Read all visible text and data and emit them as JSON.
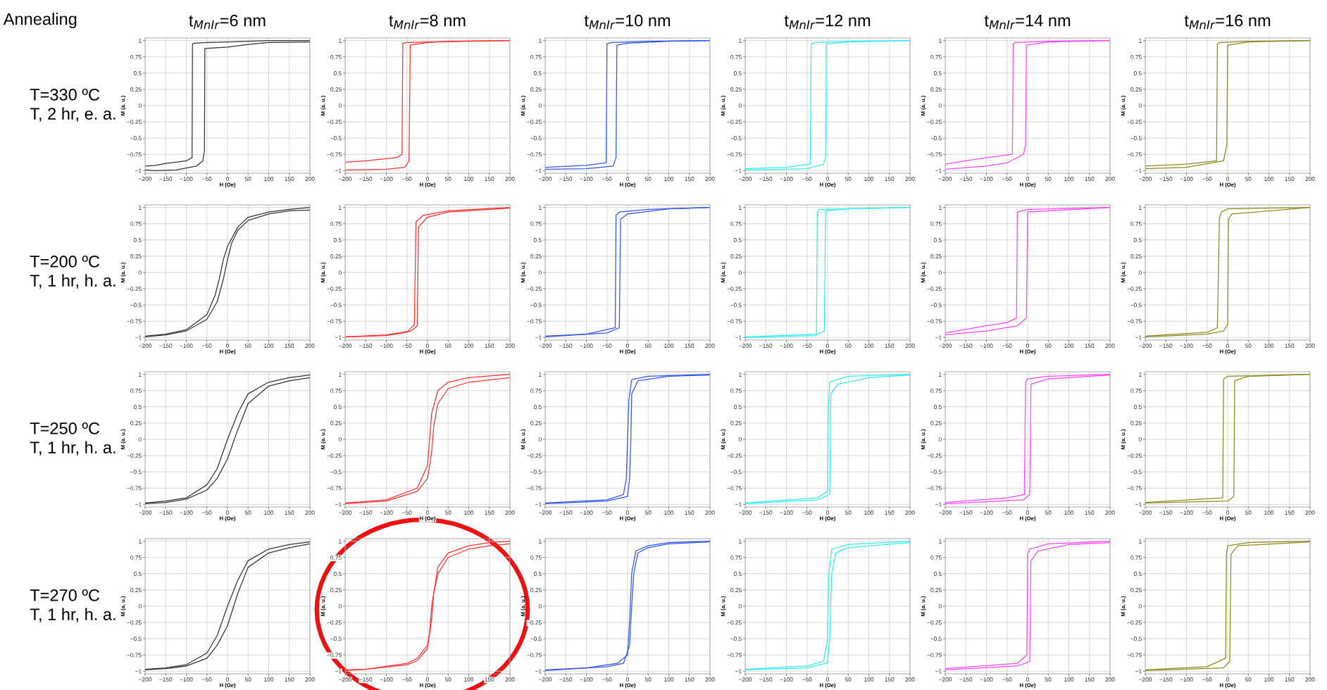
{
  "chart_data": [
    {
      "type": "line",
      "title": "t$_{MnIr}$=6 nm",
      "xlabel": "H (Oe)",
      "ylabel": "M (a. u.)",
      "xlim": [
        -200,
        200
      ],
      "ylim": [
        -1.04,
        1.04
      ],
      "xticks": [
        -200,
        -150,
        -100,
        -50,
        0,
        50,
        100,
        150,
        200
      ],
      "yticks": [
        -1,
        -0.75,
        -0.5,
        -0.25,
        0,
        0.25,
        0.5,
        0.75,
        1
      ],
      "grid": true,
      "annotations": [
        "Annealing",
        "T=330 ºC\nT, 2 hr, e. a."
      ],
      "series": [
        {
          "color": "#333333",
          "x": [
            200,
            100,
            0,
            -50,
            -80,
            -85,
            -86,
            -100,
            -150,
            -175,
            -200
          ],
          "values": [
            1,
            1,
            0.98,
            0.97,
            0.96,
            0.95,
            -0.8,
            -0.85,
            -0.89,
            -0.92,
            -0.93
          ]
        },
        {
          "color": "#333333",
          "x": [
            -200,
            -175,
            -125,
            -75,
            -60,
            -56,
            -55,
            0,
            50,
            100,
            200
          ],
          "values": [
            -0.99,
            -1,
            -0.99,
            -0.93,
            -0.85,
            -0.7,
            0.88,
            0.9,
            0.94,
            0.97,
            0.98
          ]
        }
      ]
    },
    {
      "type": "line",
      "title": "t$_{MnIr}$=8 nm",
      "xlabel": "H (Oe)",
      "ylabel": "M (a. u.)",
      "xlim": [
        -200,
        200
      ],
      "ylim": [
        -1.04,
        1.04
      ],
      "xticks": [
        -200,
        -150,
        -100,
        -50,
        0,
        50,
        100,
        150,
        200
      ],
      "yticks": [
        -1,
        -0.75,
        -0.5,
        -0.25,
        0,
        0.25,
        0.5,
        0.75,
        1
      ],
      "grid": true,
      "series": [
        {
          "color": "#ff3030",
          "x": [
            200,
            0,
            -50,
            -60,
            -62,
            -75,
            -150,
            -200
          ],
          "values": [
            1,
            0.98,
            0.97,
            0.96,
            -0.75,
            -0.8,
            -0.85,
            -0.87
          ]
        },
        {
          "color": "#ff3030",
          "x": [
            -200,
            -100,
            -55,
            -45,
            -42,
            0,
            50,
            200
          ],
          "values": [
            -0.99,
            -0.98,
            -0.95,
            -0.85,
            0.93,
            0.97,
            0.99,
            1
          ]
        }
      ]
    },
    {
      "type": "line",
      "title": "t$_{MnIr}$=10 nm",
      "xlabel": "H (Oe)",
      "ylabel": "M (a. u.)",
      "xlim": [
        -200,
        200
      ],
      "ylim": [
        -1.04,
        1.04
      ],
      "xticks": [
        -200,
        -150,
        -100,
        -50,
        0,
        50,
        100,
        150,
        200
      ],
      "yticks": [
        -1,
        -0.75,
        -0.5,
        -0.25,
        0,
        0.25,
        0.5,
        0.75,
        1
      ],
      "grid": true,
      "series": [
        {
          "color": "#3355ee",
          "x": [
            200,
            50,
            -40,
            -50,
            -52,
            -100,
            -200
          ],
          "values": [
            1,
            0.99,
            0.97,
            0.95,
            -0.88,
            -0.92,
            -0.95
          ]
        },
        {
          "color": "#3355ee",
          "x": [
            -200,
            -100,
            -35,
            -28,
            -26,
            0,
            100,
            200
          ],
          "values": [
            -0.98,
            -0.97,
            -0.93,
            -0.8,
            0.93,
            0.96,
            0.99,
            1
          ]
        }
      ]
    },
    {
      "type": "line",
      "title": "t$_{MnIr}$=12 nm",
      "xlabel": "H (Oe)",
      "ylabel": "M (a. u.)",
      "xlim": [
        -200,
        200
      ],
      "ylim": [
        -1.04,
        1.04
      ],
      "xticks": [
        -200,
        -150,
        -100,
        -50,
        0,
        50,
        100,
        150,
        200
      ],
      "yticks": [
        -1,
        -0.75,
        -0.5,
        -0.25,
        0,
        0.25,
        0.5,
        0.75,
        1
      ],
      "grid": true,
      "series": [
        {
          "color": "#33eeee",
          "x": [
            200,
            50,
            -30,
            -40,
            -42,
            -100,
            -200
          ],
          "values": [
            1,
            0.99,
            0.97,
            0.95,
            -0.9,
            -0.95,
            -0.97
          ]
        },
        {
          "color": "#33eeee",
          "x": [
            -200,
            -50,
            -10,
            -5,
            -3,
            50,
            200
          ],
          "values": [
            -0.99,
            -0.97,
            -0.9,
            -0.8,
            0.95,
            0.98,
            1
          ]
        }
      ]
    },
    {
      "type": "line",
      "title": "t$_{MnIr}$=14 nm",
      "xlabel": "H (Oe)",
      "ylabel": "M (a. u.)",
      "xlim": [
        -200,
        200
      ],
      "ylim": [
        -1.04,
        1.04
      ],
      "xticks": [
        -200,
        -150,
        -100,
        -50,
        0,
        50,
        100,
        150,
        200
      ],
      "yticks": [
        -1,
        -0.75,
        -0.5,
        -0.25,
        0,
        0.25,
        0.5,
        0.75,
        1
      ],
      "grid": true,
      "series": [
        {
          "color": "#ff44ff",
          "x": [
            200,
            50,
            -30,
            -35,
            -37,
            -100,
            -150,
            -200
          ],
          "values": [
            1,
            0.99,
            0.97,
            0.95,
            -0.75,
            -0.8,
            -0.85,
            -0.9
          ]
        },
        {
          "color": "#ff44ff",
          "x": [
            -200,
            -100,
            -50,
            -10,
            -5,
            -3,
            50,
            200
          ],
          "values": [
            -0.98,
            -0.93,
            -0.88,
            -0.75,
            -0.6,
            0.93,
            0.98,
            1
          ]
        }
      ]
    },
    {
      "type": "line",
      "title": "t$_{MnIr}$=16 nm",
      "xlabel": "H (Oe)",
      "ylabel": "M (a. u.)",
      "xlim": [
        -200,
        200
      ],
      "ylim": [
        -1.04,
        1.04
      ],
      "xticks": [
        -200,
        -150,
        -100,
        -50,
        0,
        50,
        100,
        150,
        200
      ],
      "yticks": [
        -1,
        -0.75,
        -0.5,
        -0.25,
        0,
        0.25,
        0.5,
        0.75,
        1
      ],
      "grid": true,
      "series": [
        {
          "color": "#8b8b1e",
          "x": [
            200,
            50,
            -20,
            -25,
            -27,
            -100,
            -200
          ],
          "values": [
            1,
            0.99,
            0.97,
            0.95,
            -0.85,
            -0.9,
            -0.93
          ]
        },
        {
          "color": "#8b8b1e",
          "x": [
            -200,
            -100,
            -10,
            -2,
            0,
            50,
            200
          ],
          "values": [
            -0.97,
            -0.95,
            -0.85,
            -0.6,
            0.93,
            0.98,
            1
          ]
        }
      ]
    },
    {
      "type": "line",
      "xlabel": "H (Oe)",
      "ylabel": "M (a. u.)",
      "xlim": [
        -200,
        200
      ],
      "ylim": [
        -1.04,
        1.04
      ],
      "xticks": [
        -200,
        -150,
        -100,
        -50,
        0,
        50,
        100,
        150,
        200
      ],
      "yticks": [
        -1,
        -0.75,
        -0.5,
        -0.25,
        0,
        0.25,
        0.5,
        0.75,
        1
      ],
      "grid": true,
      "annotations": [
        "T=200 ºC\nT, 1 hr, h. a."
      ],
      "series": [
        {
          "color": "#333333",
          "x": [
            200,
            150,
            100,
            50,
            25,
            0,
            -10,
            -20,
            -30,
            -50,
            -100,
            -150,
            -200
          ],
          "values": [
            1,
            0.97,
            0.93,
            0.85,
            0.7,
            0.4,
            0.2,
            -0.1,
            -0.35,
            -0.65,
            -0.88,
            -0.95,
            -0.98
          ]
        },
        {
          "color": "#333333",
          "x": [
            -200,
            -150,
            -100,
            -50,
            -25,
            -10,
            0,
            10,
            25,
            50,
            100,
            150,
            200
          ],
          "values": [
            -0.99,
            -0.96,
            -0.9,
            -0.72,
            -0.45,
            -0.1,
            0.2,
            0.45,
            0.65,
            0.8,
            0.9,
            0.95,
            0.96
          ]
        }
      ]
    },
    {
      "type": "line",
      "xlabel": "H (Oe)",
      "ylabel": "M (a. u.)",
      "xlim": [
        -200,
        200
      ],
      "ylim": [
        -1.04,
        1.04
      ],
      "xticks": [
        -200,
        -150,
        -100,
        -50,
        0,
        50,
        100,
        150,
        200
      ],
      "yticks": [
        -1,
        -0.75,
        -0.5,
        -0.25,
        0,
        0.25,
        0.5,
        0.75,
        1
      ],
      "grid": true,
      "series": [
        {
          "color": "#ff3030",
          "x": [
            200,
            50,
            -10,
            -28,
            -32,
            -50,
            -100,
            -200
          ],
          "values": [
            1,
            0.95,
            0.88,
            0.78,
            -0.8,
            -0.92,
            -0.97,
            -0.99
          ]
        },
        {
          "color": "#ff3030",
          "x": [
            -200,
            -100,
            -40,
            -25,
            -22,
            0,
            50,
            200
          ],
          "values": [
            -0.99,
            -0.96,
            -0.9,
            -0.82,
            0.7,
            0.85,
            0.93,
            0.99
          ]
        }
      ]
    },
    {
      "type": "line",
      "xlabel": "H (Oe)",
      "ylabel": "M (a. u.)",
      "xlim": [
        -200,
        200
      ],
      "ylim": [
        -1.04,
        1.04
      ],
      "xticks": [
        -200,
        -150,
        -100,
        -50,
        0,
        50,
        100,
        150,
        200
      ],
      "yticks": [
        -1,
        -0.75,
        -0.5,
        -0.25,
        0,
        0.25,
        0.5,
        0.75,
        1
      ],
      "grid": true,
      "series": [
        {
          "color": "#3355ee",
          "x": [
            200,
            50,
            -20,
            -28,
            -30,
            -100,
            -200
          ],
          "values": [
            1,
            0.97,
            0.93,
            0.88,
            -0.85,
            -0.95,
            -0.98
          ]
        },
        {
          "color": "#3355ee",
          "x": [
            -200,
            -50,
            -20,
            -17,
            0,
            100,
            200
          ],
          "values": [
            -0.99,
            -0.93,
            -0.85,
            0.82,
            0.9,
            0.98,
            1
          ]
        }
      ]
    },
    {
      "type": "line",
      "xlabel": "H (Oe)",
      "ylabel": "M (a. u.)",
      "xlim": [
        -200,
        200
      ],
      "ylim": [
        -1.04,
        1.04
      ],
      "xticks": [
        -200,
        -150,
        -100,
        -50,
        0,
        50,
        100,
        150,
        200
      ],
      "yticks": [
        -1,
        -0.75,
        -0.5,
        -0.25,
        0,
        0.25,
        0.5,
        0.75,
        1
      ],
      "grid": true,
      "series": [
        {
          "color": "#33eeee",
          "x": [
            200,
            -20,
            -25,
            -27,
            -200
          ],
          "values": [
            1,
            0.97,
            0.93,
            -0.95,
            -0.99
          ]
        },
        {
          "color": "#33eeee",
          "x": [
            -200,
            -30,
            -8,
            -5,
            50,
            200
          ],
          "values": [
            -1,
            -0.97,
            -0.9,
            0.95,
            0.98,
            1
          ]
        }
      ]
    },
    {
      "type": "line",
      "xlabel": "H (Oe)",
      "ylabel": "M (a. u.)",
      "xlim": [
        -200,
        200
      ],
      "ylim": [
        -1.04,
        1.04
      ],
      "xticks": [
        -200,
        -150,
        -100,
        -50,
        0,
        50,
        100,
        150,
        200
      ],
      "yticks": [
        -1,
        -0.75,
        -0.5,
        -0.25,
        0,
        0.25,
        0.5,
        0.75,
        1
      ],
      "grid": true,
      "series": [
        {
          "color": "#ff44ff",
          "x": [
            200,
            0,
            -25,
            -27,
            -50,
            -100,
            -200
          ],
          "values": [
            1,
            0.97,
            0.93,
            -0.7,
            -0.77,
            -0.82,
            -0.93
          ]
        },
        {
          "color": "#ff44ff",
          "x": [
            -200,
            -100,
            -25,
            -3,
            0,
            200
          ],
          "values": [
            -0.96,
            -0.9,
            -0.82,
            -0.7,
            0.93,
            1
          ]
        }
      ]
    },
    {
      "type": "line",
      "xlabel": "H (Oe)",
      "ylabel": "M (a. u.)",
      "xlim": [
        -200,
        200
      ],
      "ylim": [
        -1.04,
        1.04
      ],
      "xticks": [
        -200,
        -150,
        -100,
        -50,
        0,
        50,
        100,
        150,
        200
      ],
      "yticks": [
        -1,
        -0.75,
        -0.5,
        -0.25,
        0,
        0.25,
        0.5,
        0.75,
        1
      ],
      "grid": true,
      "series": [
        {
          "color": "#8b8b1e",
          "x": [
            200,
            0,
            -15,
            -20,
            -25,
            -50,
            -200
          ],
          "values": [
            1,
            0.98,
            0.93,
            0.85,
            -0.85,
            -0.92,
            -0.98
          ]
        },
        {
          "color": "#8b8b1e",
          "x": [
            -200,
            -50,
            -10,
            0,
            2,
            10,
            200
          ],
          "values": [
            -0.99,
            -0.95,
            -0.9,
            -0.8,
            0.82,
            0.9,
            1
          ]
        }
      ]
    },
    {
      "type": "line",
      "xlabel": "H (Oe)",
      "ylabel": "M (a. u.)",
      "xlim": [
        -200,
        200
      ],
      "ylim": [
        -1.04,
        1.04
      ],
      "xticks": [
        -200,
        -150,
        -100,
        -50,
        0,
        50,
        100,
        150,
        200
      ],
      "yticks": [
        -1,
        -0.75,
        -0.5,
        -0.25,
        0,
        0.25,
        0.5,
        0.75,
        1
      ],
      "grid": true,
      "annotations": [
        "T=250 ºC\nT, 1 hr, h. a."
      ],
      "series": [
        {
          "color": "#333333",
          "x": [
            200,
            150,
            100,
            50,
            25,
            0,
            -25,
            -50,
            -100,
            -150,
            -200
          ],
          "values": [
            0.99,
            0.95,
            0.88,
            0.7,
            0.4,
            0,
            -0.45,
            -0.7,
            -0.9,
            -0.95,
            -0.98
          ]
        },
        {
          "color": "#333333",
          "x": [
            -200,
            -150,
            -100,
            -50,
            -25,
            0,
            25,
            50,
            100,
            150,
            200
          ],
          "values": [
            -0.99,
            -0.97,
            -0.92,
            -0.78,
            -0.6,
            -0.3,
            0.15,
            0.55,
            0.82,
            0.9,
            0.95
          ]
        }
      ]
    },
    {
      "type": "line",
      "xlabel": "H (Oe)",
      "ylabel": "M (a. u.)",
      "xlim": [
        -200,
        200
      ],
      "ylim": [
        -1.04,
        1.04
      ],
      "xticks": [
        -200,
        -150,
        -100,
        -50,
        0,
        50,
        100,
        150,
        200
      ],
      "yticks": [
        -1,
        -0.75,
        -0.5,
        -0.25,
        0,
        0.25,
        0.5,
        0.75,
        1
      ],
      "grid": true,
      "series": [
        {
          "color": "#ff3030",
          "x": [
            200,
            100,
            50,
            25,
            10,
            5,
            0,
            -25,
            -100,
            -200
          ],
          "values": [
            1,
            0.95,
            0.88,
            0.75,
            0.4,
            0,
            -0.4,
            -0.75,
            -0.93,
            -0.98
          ]
        },
        {
          "color": "#ff3030",
          "x": [
            -200,
            -100,
            -25,
            0,
            10,
            15,
            25,
            50,
            100,
            200
          ],
          "values": [
            -0.99,
            -0.95,
            -0.8,
            -0.6,
            -0.2,
            0.2,
            0.55,
            0.78,
            0.88,
            0.95
          ]
        }
      ]
    },
    {
      "type": "line",
      "xlabel": "H (Oe)",
      "ylabel": "M (a. u.)",
      "xlim": [
        -200,
        200
      ],
      "ylim": [
        -1.04,
        1.04
      ],
      "xticks": [
        -200,
        -150,
        -100,
        -50,
        0,
        50,
        100,
        150,
        200
      ],
      "yticks": [
        -1,
        -0.75,
        -0.5,
        -0.25,
        0,
        0.25,
        0.5,
        0.75,
        1
      ],
      "grid": true,
      "series": [
        {
          "color": "#3355ee",
          "x": [
            200,
            50,
            10,
            3,
            0,
            -3,
            -10,
            -50,
            -200
          ],
          "values": [
            1,
            0.97,
            0.92,
            0.6,
            0,
            -0.6,
            -0.85,
            -0.93,
            -0.98
          ]
        },
        {
          "color": "#3355ee",
          "x": [
            -200,
            -50,
            0,
            5,
            8,
            10,
            25,
            100,
            200
          ],
          "values": [
            -0.99,
            -0.95,
            -0.88,
            -0.6,
            0,
            0.7,
            0.9,
            0.97,
            0.99
          ]
        }
      ]
    },
    {
      "type": "line",
      "xlabel": "H (Oe)",
      "ylabel": "M (a. u.)",
      "xlim": [
        -200,
        200
      ],
      "ylim": [
        -1.04,
        1.04
      ],
      "xticks": [
        -200,
        -150,
        -100,
        -50,
        0,
        50,
        100,
        150,
        200
      ],
      "yticks": [
        -1,
        -0.75,
        -0.5,
        -0.25,
        0,
        0.25,
        0.5,
        0.75,
        1
      ],
      "grid": true,
      "series": [
        {
          "color": "#33eeee",
          "x": [
            200,
            50,
            5,
            2,
            0,
            -25,
            -200
          ],
          "values": [
            1,
            0.97,
            0.88,
            0.5,
            -0.8,
            -0.9,
            -0.98
          ]
        },
        {
          "color": "#33eeee",
          "x": [
            -200,
            -25,
            5,
            8,
            25,
            100,
            200
          ],
          "values": [
            -0.99,
            -0.93,
            -0.85,
            0.7,
            0.85,
            0.95,
            0.99
          ]
        }
      ]
    },
    {
      "type": "line",
      "xlabel": "H (Oe)",
      "ylabel": "M (a. u.)",
      "xlim": [
        -200,
        200
      ],
      "ylim": [
        -1.04,
        1.04
      ],
      "xticks": [
        -200,
        -150,
        -100,
        -50,
        0,
        50,
        100,
        150,
        200
      ],
      "yticks": [
        -1,
        -0.75,
        -0.5,
        -0.25,
        0,
        0.25,
        0.5,
        0.75,
        1
      ],
      "grid": true,
      "series": [
        {
          "color": "#ff44ff",
          "x": [
            200,
            50,
            0,
            -5,
            -8,
            -50,
            -200
          ],
          "values": [
            1,
            0.97,
            0.93,
            0.88,
            -0.85,
            -0.9,
            -0.97
          ]
        },
        {
          "color": "#ff44ff",
          "x": [
            -200,
            -100,
            -10,
            5,
            8,
            50,
            200
          ],
          "values": [
            -0.99,
            -0.96,
            -0.93,
            -0.85,
            0.85,
            0.93,
            0.99
          ]
        }
      ]
    },
    {
      "type": "line",
      "xlabel": "H (Oe)",
      "ylabel": "M (a. u.)",
      "xlim": [
        -200,
        200
      ],
      "ylim": [
        -1.04,
        1.04
      ],
      "xticks": [
        -200,
        -150,
        -100,
        -50,
        0,
        50,
        100,
        150,
        200
      ],
      "yticks": [
        -1,
        -0.75,
        -0.5,
        -0.25,
        0,
        0.25,
        0.5,
        0.75,
        1
      ],
      "grid": true,
      "series": [
        {
          "color": "#8b8b1e",
          "x": [
            200,
            0,
            -10,
            -12,
            -200
          ],
          "values": [
            1,
            0.97,
            0.93,
            -0.9,
            -0.97
          ]
        },
        {
          "color": "#8b8b1e",
          "x": [
            -200,
            0,
            15,
            17,
            50,
            200
          ],
          "values": [
            -0.98,
            -0.95,
            -0.88,
            0.9,
            0.97,
            1
          ]
        }
      ]
    },
    {
      "type": "line",
      "xlabel": "H (Oe)",
      "ylabel": "M (a. u.)",
      "xlim": [
        -200,
        200
      ],
      "ylim": [
        -1.04,
        1.04
      ],
      "xticks": [
        -200,
        -150,
        -100,
        -50,
        0,
        50,
        100,
        150,
        200
      ],
      "yticks": [
        -1,
        -0.75,
        -0.5,
        -0.25,
        0,
        0.25,
        0.5,
        0.75,
        1
      ],
      "grid": true,
      "annotations": [
        "T=270 ºC\nT, 1 hr, h. a."
      ],
      "series": [
        {
          "color": "#333333",
          "x": [
            200,
            150,
            100,
            50,
            25,
            0,
            -25,
            -50,
            -100,
            -150,
            -200
          ],
          "values": [
            0.99,
            0.95,
            0.88,
            0.7,
            0.4,
            0,
            -0.45,
            -0.72,
            -0.9,
            -0.95,
            -0.97
          ]
        },
        {
          "color": "#333333",
          "x": [
            -200,
            -150,
            -100,
            -50,
            -25,
            0,
            25,
            50,
            100,
            150,
            200
          ],
          "values": [
            -0.98,
            -0.96,
            -0.92,
            -0.8,
            -0.6,
            -0.3,
            0.2,
            0.6,
            0.82,
            0.9,
            0.96
          ]
        }
      ]
    },
    {
      "type": "line",
      "xlabel": "H (Oe)",
      "ylabel": "M (a. u.)",
      "xlim": [
        -200,
        200
      ],
      "ylim": [
        -1.04,
        1.04
      ],
      "xticks": [
        -200,
        -150,
        -100,
        -50,
        0,
        50,
        100,
        150,
        200
      ],
      "yticks": [
        -1,
        -0.75,
        -0.5,
        -0.25,
        0,
        0.25,
        0.5,
        0.75,
        1
      ],
      "grid": true,
      "series": [
        {
          "color": "#ff3030",
          "x": [
            200,
            150,
            100,
            50,
            25,
            10,
            5,
            0,
            -25,
            -50,
            -150,
            -200
          ],
          "values": [
            1,
            0.98,
            0.93,
            0.82,
            0.6,
            0,
            -0.4,
            -0.6,
            -0.8,
            -0.88,
            -0.97,
            -0.98
          ]
        },
        {
          "color": "#ff3030",
          "x": [
            -200,
            -150,
            -50,
            -25,
            0,
            10,
            15,
            25,
            50,
            100,
            150,
            200
          ],
          "values": [
            -0.99,
            -0.97,
            -0.9,
            -0.84,
            -0.65,
            -0.2,
            0.2,
            0.5,
            0.75,
            0.88,
            0.93,
            0.96
          ]
        }
      ]
    },
    {
      "type": "line",
      "xlabel": "H (Oe)",
      "ylabel": "M (a. u.)",
      "xlim": [
        -200,
        200
      ],
      "ylim": [
        -1.04,
        1.04
      ],
      "xticks": [
        -200,
        -150,
        -100,
        -50,
        0,
        50,
        100,
        150,
        200
      ],
      "yticks": [
        -1,
        -0.75,
        -0.5,
        -0.25,
        0,
        0.25,
        0.5,
        0.75,
        1
      ],
      "grid": true,
      "series": [
        {
          "color": "#3355ee",
          "x": [
            200,
            100,
            50,
            20,
            10,
            5,
            0,
            -25,
            -100,
            -200
          ],
          "values": [
            1,
            0.98,
            0.93,
            0.85,
            0.5,
            -0.2,
            -0.75,
            -0.88,
            -0.95,
            -0.98
          ]
        },
        {
          "color": "#3355ee",
          "x": [
            -200,
            -50,
            -10,
            5,
            10,
            15,
            25,
            50,
            100,
            200
          ],
          "values": [
            -0.99,
            -0.93,
            -0.88,
            -0.6,
            0,
            0.5,
            0.82,
            0.9,
            0.96,
            0.99
          ]
        }
      ]
    },
    {
      "type": "line",
      "xlabel": "H (Oe)",
      "ylabel": "M (a. u.)",
      "xlim": [
        -200,
        200
      ],
      "ylim": [
        -1.04,
        1.04
      ],
      "xticks": [
        -200,
        -150,
        -100,
        -50,
        0,
        50,
        100,
        150,
        200
      ],
      "yticks": [
        -1,
        -0.75,
        -0.5,
        -0.25,
        0,
        0.25,
        0.5,
        0.75,
        1
      ],
      "grid": true,
      "series": [
        {
          "color": "#33eeee",
          "x": [
            200,
            50,
            10,
            3,
            0,
            -10,
            -50,
            -200
          ],
          "values": [
            1,
            0.95,
            0.88,
            0.5,
            -0.5,
            -0.85,
            -0.92,
            -0.97
          ]
        },
        {
          "color": "#33eeee",
          "x": [
            -200,
            -50,
            0,
            5,
            10,
            20,
            50,
            200
          ],
          "values": [
            -0.98,
            -0.95,
            -0.87,
            -0.5,
            0.5,
            0.82,
            0.9,
            0.98
          ]
        }
      ]
    },
    {
      "type": "line",
      "xlabel": "H (Oe)",
      "ylabel": "M (a. u.)",
      "xlim": [
        -200,
        200
      ],
      "ylim": [
        -1.04,
        1.04
      ],
      "xticks": [
        -200,
        -150,
        -100,
        -50,
        0,
        50,
        100,
        150,
        200
      ],
      "yticks": [
        -1,
        -0.75,
        -0.5,
        -0.25,
        0,
        0.25,
        0.5,
        0.75,
        1
      ],
      "grid": true,
      "series": [
        {
          "color": "#ff44ff",
          "x": [
            200,
            50,
            5,
            0,
            -2,
            -25,
            -200
          ],
          "values": [
            1,
            0.96,
            0.88,
            0.8,
            -0.75,
            -0.88,
            -0.96
          ]
        },
        {
          "color": "#ff44ff",
          "x": [
            -200,
            -25,
            5,
            8,
            25,
            100,
            200
          ],
          "values": [
            -0.98,
            -0.92,
            -0.85,
            0.7,
            0.85,
            0.95,
            0.98
          ]
        }
      ]
    },
    {
      "type": "line",
      "xlabel": "H (Oe)",
      "ylabel": "M (a. u.)",
      "xlim": [
        -200,
        200
      ],
      "ylim": [
        -1.04,
        1.04
      ],
      "xticks": [
        -200,
        -150,
        -100,
        -50,
        0,
        50,
        100,
        150,
        200
      ],
      "yticks": [
        -1,
        -0.75,
        -0.5,
        -0.25,
        0,
        0.25,
        0.5,
        0.75,
        1
      ],
      "grid": true,
      "series": [
        {
          "color": "#8b8b1e",
          "x": [
            200,
            50,
            0,
            -3,
            -5,
            -50,
            -200
          ],
          "values": [
            1,
            0.98,
            0.93,
            0.8,
            -0.8,
            -0.93,
            -0.98
          ]
        },
        {
          "color": "#8b8b1e",
          "x": [
            -200,
            -10,
            5,
            8,
            25,
            200
          ],
          "values": [
            -0.99,
            -0.95,
            -0.85,
            0.8,
            0.93,
            0.99
          ]
        }
      ]
    }
  ]
}
